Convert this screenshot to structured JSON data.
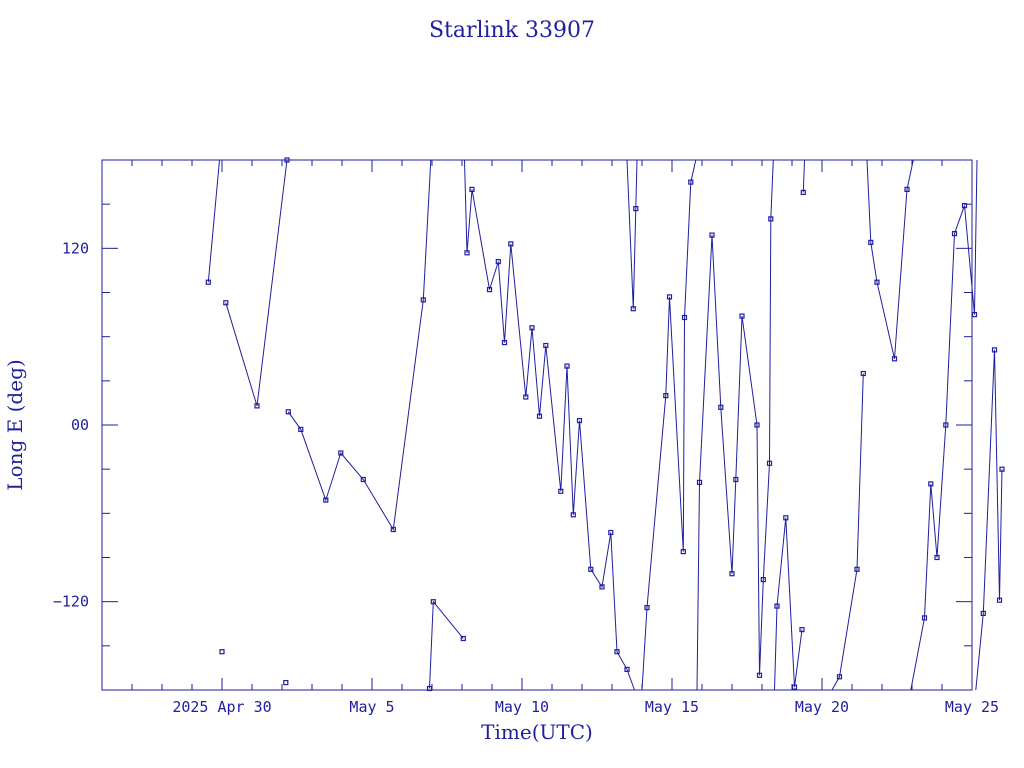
{
  "chart_data": {
    "type": "line",
    "title": "Starlink 33907",
    "xlabel": "Time(UTC)",
    "ylabel": "Long E (deg)",
    "x_range": [
      "2025-04-26",
      "2025-05-25"
    ],
    "ylim": [
      -180,
      180
    ],
    "x_tick_labels": [
      {
        "date": "2025-04-30",
        "label": "2025 Apr 30"
      },
      {
        "date": "2025-05-05",
        "label": "May  5"
      },
      {
        "date": "2025-05-10",
        "label": "May 10"
      },
      {
        "date": "2025-05-15",
        "label": "May 15"
      },
      {
        "date": "2025-05-20",
        "label": "May 20"
      },
      {
        "date": "2025-05-25",
        "label": "May 25"
      }
    ],
    "y_ticks": [
      {
        "value": 120,
        "label": "120"
      },
      {
        "value": 0,
        "label": "00"
      },
      {
        "value": -120,
        "label": "−120"
      }
    ],
    "grid": false,
    "series": [
      {
        "wrap": true,
        "points": [
          {
            "t": "2025-04-29T13:00",
            "y": 97
          },
          {
            "t": "2025-04-29T22:00",
            "y": 183
          },
          {
            "t": "2025-04-30T00:00",
            "y": -154
          },
          {
            "t": "2025-04-30T03:00",
            "y": 83
          },
          {
            "t": "2025-05-01T04:00",
            "y": 13
          },
          {
            "t": "2025-05-02T04:00",
            "y": 180
          },
          {
            "t": "2025-05-02T03:00",
            "y": -175
          },
          {
            "t": "2025-05-02T05:00",
            "y": 9
          },
          {
            "t": "2025-05-02T15:00",
            "y": -3
          },
          {
            "t": "2025-05-03T11:00",
            "y": -51
          },
          {
            "t": "2025-05-03T23:00",
            "y": -19
          },
          {
            "t": "2025-05-04T17:00",
            "y": -37
          },
          {
            "t": "2025-05-05T17:00",
            "y": -71
          },
          {
            "t": "2025-05-06T17:00",
            "y": 85
          },
          {
            "t": "2025-05-06T23:00",
            "y": 183
          },
          {
            "t": "2025-05-06T22:00",
            "y": -179
          },
          {
            "t": "2025-05-07T01:00",
            "y": -120
          },
          {
            "t": "2025-05-08T01:00",
            "y": -145
          },
          {
            "t": "2025-05-08T02:00",
            "y": 181
          },
          {
            "t": "2025-05-08T04:00",
            "y": 117
          },
          {
            "t": "2025-05-08T08:00",
            "y": 160
          },
          {
            "t": "2025-05-08T22:00",
            "y": 92
          },
          {
            "t": "2025-05-09T05:00",
            "y": 111
          },
          {
            "t": "2025-05-09T10:00",
            "y": 56
          },
          {
            "t": "2025-05-09T15:00",
            "y": 123
          },
          {
            "t": "2025-05-10T03:00",
            "y": 19
          },
          {
            "t": "2025-05-10T08:00",
            "y": 66
          },
          {
            "t": "2025-05-10T14:00",
            "y": 6
          },
          {
            "t": "2025-05-10T19:00",
            "y": 54
          },
          {
            "t": "2025-05-11T07:00",
            "y": -45
          },
          {
            "t": "2025-05-11T12:00",
            "y": 40
          },
          {
            "t": "2025-05-11T17:00",
            "y": -61
          },
          {
            "t": "2025-05-11T22:00",
            "y": 3
          },
          {
            "t": "2025-05-12T07:00",
            "y": -98
          },
          {
            "t": "2025-05-12T16:00",
            "y": -110
          },
          {
            "t": "2025-05-12T23:00",
            "y": -73
          },
          {
            "t": "2025-05-13T04:00",
            "y": -154
          },
          {
            "t": "2025-05-13T12:00",
            "y": -166
          },
          {
            "t": "2025-05-13T18:00",
            "y": -183
          },
          {
            "t": "2025-05-13T12:00",
            "y": 183
          },
          {
            "t": "2025-05-13T17:00",
            "y": 79
          },
          {
            "t": "2025-05-13T19:00",
            "y": 147
          },
          {
            "t": "2025-05-13T20:00",
            "y": 181
          },
          {
            "t": "2025-05-14T00:00",
            "y": -181
          },
          {
            "t": "2025-05-14T04:00",
            "y": -124
          },
          {
            "t": "2025-05-14T19:00",
            "y": 20
          },
          {
            "t": "2025-05-14T22:00",
            "y": 87
          },
          {
            "t": "2025-05-15T09:00",
            "y": -86
          },
          {
            "t": "2025-05-15T10:00",
            "y": 73
          },
          {
            "t": "2025-05-15T15:00",
            "y": 165
          },
          {
            "t": "2025-05-15T19:00",
            "y": 183
          },
          {
            "t": "2025-05-15T20:00",
            "y": -183
          },
          {
            "t": "2025-05-15T22:00",
            "y": -39
          },
          {
            "t": "2025-05-16T08:00",
            "y": 129
          },
          {
            "t": "2025-05-16T15:00",
            "y": 12
          },
          {
            "t": "2025-05-17T00:00",
            "y": -101
          },
          {
            "t": "2025-05-17T03:00",
            "y": -37
          },
          {
            "t": "2025-05-17T08:00",
            "y": 74
          },
          {
            "t": "2025-05-17T20:00",
            "y": 0
          },
          {
            "t": "2025-05-17T22:00",
            "y": -170
          },
          {
            "t": "2025-05-18T01:00",
            "y": -105
          },
          {
            "t": "2025-05-18T06:00",
            "y": -26
          },
          {
            "t": "2025-05-18T07:00",
            "y": 140
          },
          {
            "t": "2025-05-18T09:00",
            "y": 183
          },
          {
            "t": "2025-05-18T10:00",
            "y": -183
          },
          {
            "t": "2025-05-18T12:00",
            "y": -123
          },
          {
            "t": "2025-05-18T19:00",
            "y": -63
          },
          {
            "t": "2025-05-19T02:00",
            "y": -178
          },
          {
            "t": "2025-05-19T08:00",
            "y": -139
          },
          {
            "t": "2025-05-19T09:00",
            "y": 158
          },
          {
            "t": "2025-05-19T10:00",
            "y": 183
          },
          {
            "t": "2025-05-20T09:00",
            "y": 183
          },
          {
            "t": "2025-05-20T08:00",
            "y": -183
          },
          {
            "t": "2025-05-20T14:00",
            "y": -171
          },
          {
            "t": "2025-05-21T04:00",
            "y": -98
          },
          {
            "t": "2025-05-21T09:00",
            "y": 35
          },
          {
            "t": "2025-05-21T14:00",
            "y": -183
          },
          {
            "t": "2025-05-21T12:00",
            "y": 183
          },
          {
            "t": "2025-05-21T15:00",
            "y": 124
          },
          {
            "t": "2025-05-21T20:00",
            "y": 97
          },
          {
            "t": "2025-05-22T10:00",
            "y": 45
          },
          {
            "t": "2025-05-22T20:00",
            "y": 160
          },
          {
            "t": "2025-05-23T01:00",
            "y": 183
          },
          {
            "t": "2025-05-22T23:00",
            "y": -183
          },
          {
            "t": "2025-05-23T10:00",
            "y": -131
          },
          {
            "t": "2025-05-23T15:00",
            "y": -40
          },
          {
            "t": "2025-05-23T20:00",
            "y": -90
          },
          {
            "t": "2025-05-24T03:00",
            "y": 0
          },
          {
            "t": "2025-05-24T10:00",
            "y": 130
          },
          {
            "t": "2025-05-24T18:00",
            "y": 149
          },
          {
            "t": "2025-05-25T02:00",
            "y": 75
          },
          {
            "t": "2025-05-25T04:00",
            "y": 183
          },
          {
            "t": "2025-05-25T03:00",
            "y": -183
          },
          {
            "t": "2025-05-25T09:00",
            "y": -128
          },
          {
            "t": "2025-05-25T18:00",
            "y": 51
          },
          {
            "t": "2025-05-25T22:00",
            "y": -119
          },
          {
            "t": "2025-05-26T00:00",
            "y": -30
          }
        ]
      }
    ]
  }
}
